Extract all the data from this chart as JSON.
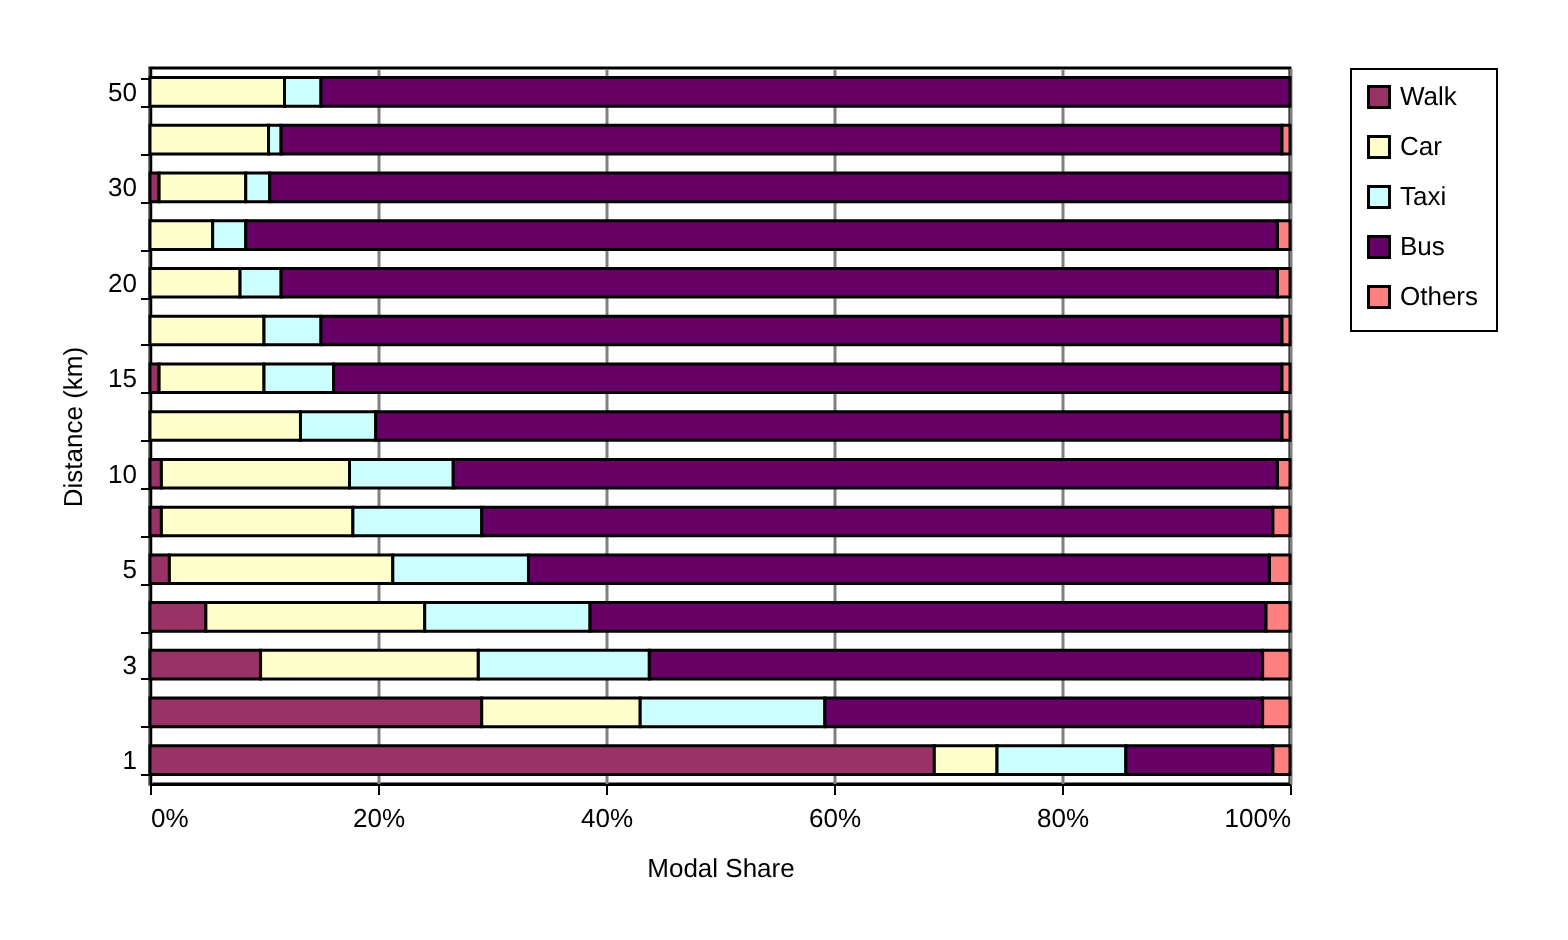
{
  "chart_data": {
    "type": "bar",
    "orientation": "horizontal",
    "stacked": true,
    "xlabel": "Modal Share",
    "ylabel": "Distance (km)",
    "categories": [
      "50",
      null,
      "30",
      null,
      "20",
      null,
      "15",
      null,
      "10",
      null,
      "5",
      null,
      "3",
      null,
      "1"
    ],
    "series": [
      {
        "name": "Walk",
        "color": "#993366",
        "values": [
          null,
          null,
          0.8,
          null,
          null,
          null,
          0.8,
          null,
          1.0,
          1.0,
          1.7,
          4.9,
          9.7,
          29.1,
          68.8
        ]
      },
      {
        "name": "Car",
        "color": "#ffffcc",
        "values": [
          11.8,
          10.4,
          7.6,
          5.5,
          7.9,
          10.0,
          9.2,
          13.2,
          16.5,
          16.8,
          19.6,
          19.2,
          19.1,
          13.9,
          5.5
        ]
      },
      {
        "name": "Taxi",
        "color": "#ccffff",
        "values": [
          3.2,
          1.1,
          2.1,
          2.9,
          3.6,
          5.0,
          6.1,
          6.6,
          9.1,
          11.3,
          11.9,
          14.5,
          15.0,
          16.2,
          11.3
        ]
      },
      {
        "name": "Bus",
        "color": "#660066",
        "values": [
          85.0,
          87.8,
          89.5,
          90.5,
          87.4,
          84.3,
          83.2,
          79.5,
          72.3,
          69.4,
          65.0,
          59.3,
          53.8,
          38.4,
          12.9
        ]
      },
      {
        "name": "Others",
        "color": "#ff8080",
        "values": [
          null,
          0.7,
          null,
          1.1,
          1.1,
          0.7,
          0.7,
          0.7,
          1.1,
          1.5,
          1.8,
          2.1,
          2.4,
          2.4,
          1.5
        ]
      }
    ],
    "xlim": [
      0,
      100
    ],
    "xticks": [
      {
        "value": 0,
        "label": "0%"
      },
      {
        "value": 20,
        "label": "20%"
      },
      {
        "value": 40,
        "label": "40%"
      },
      {
        "value": 60,
        "label": "60%"
      },
      {
        "value": 80,
        "label": "80%"
      },
      {
        "value": 100,
        "label": "100%"
      }
    ],
    "grid": "x",
    "legend": "right"
  }
}
